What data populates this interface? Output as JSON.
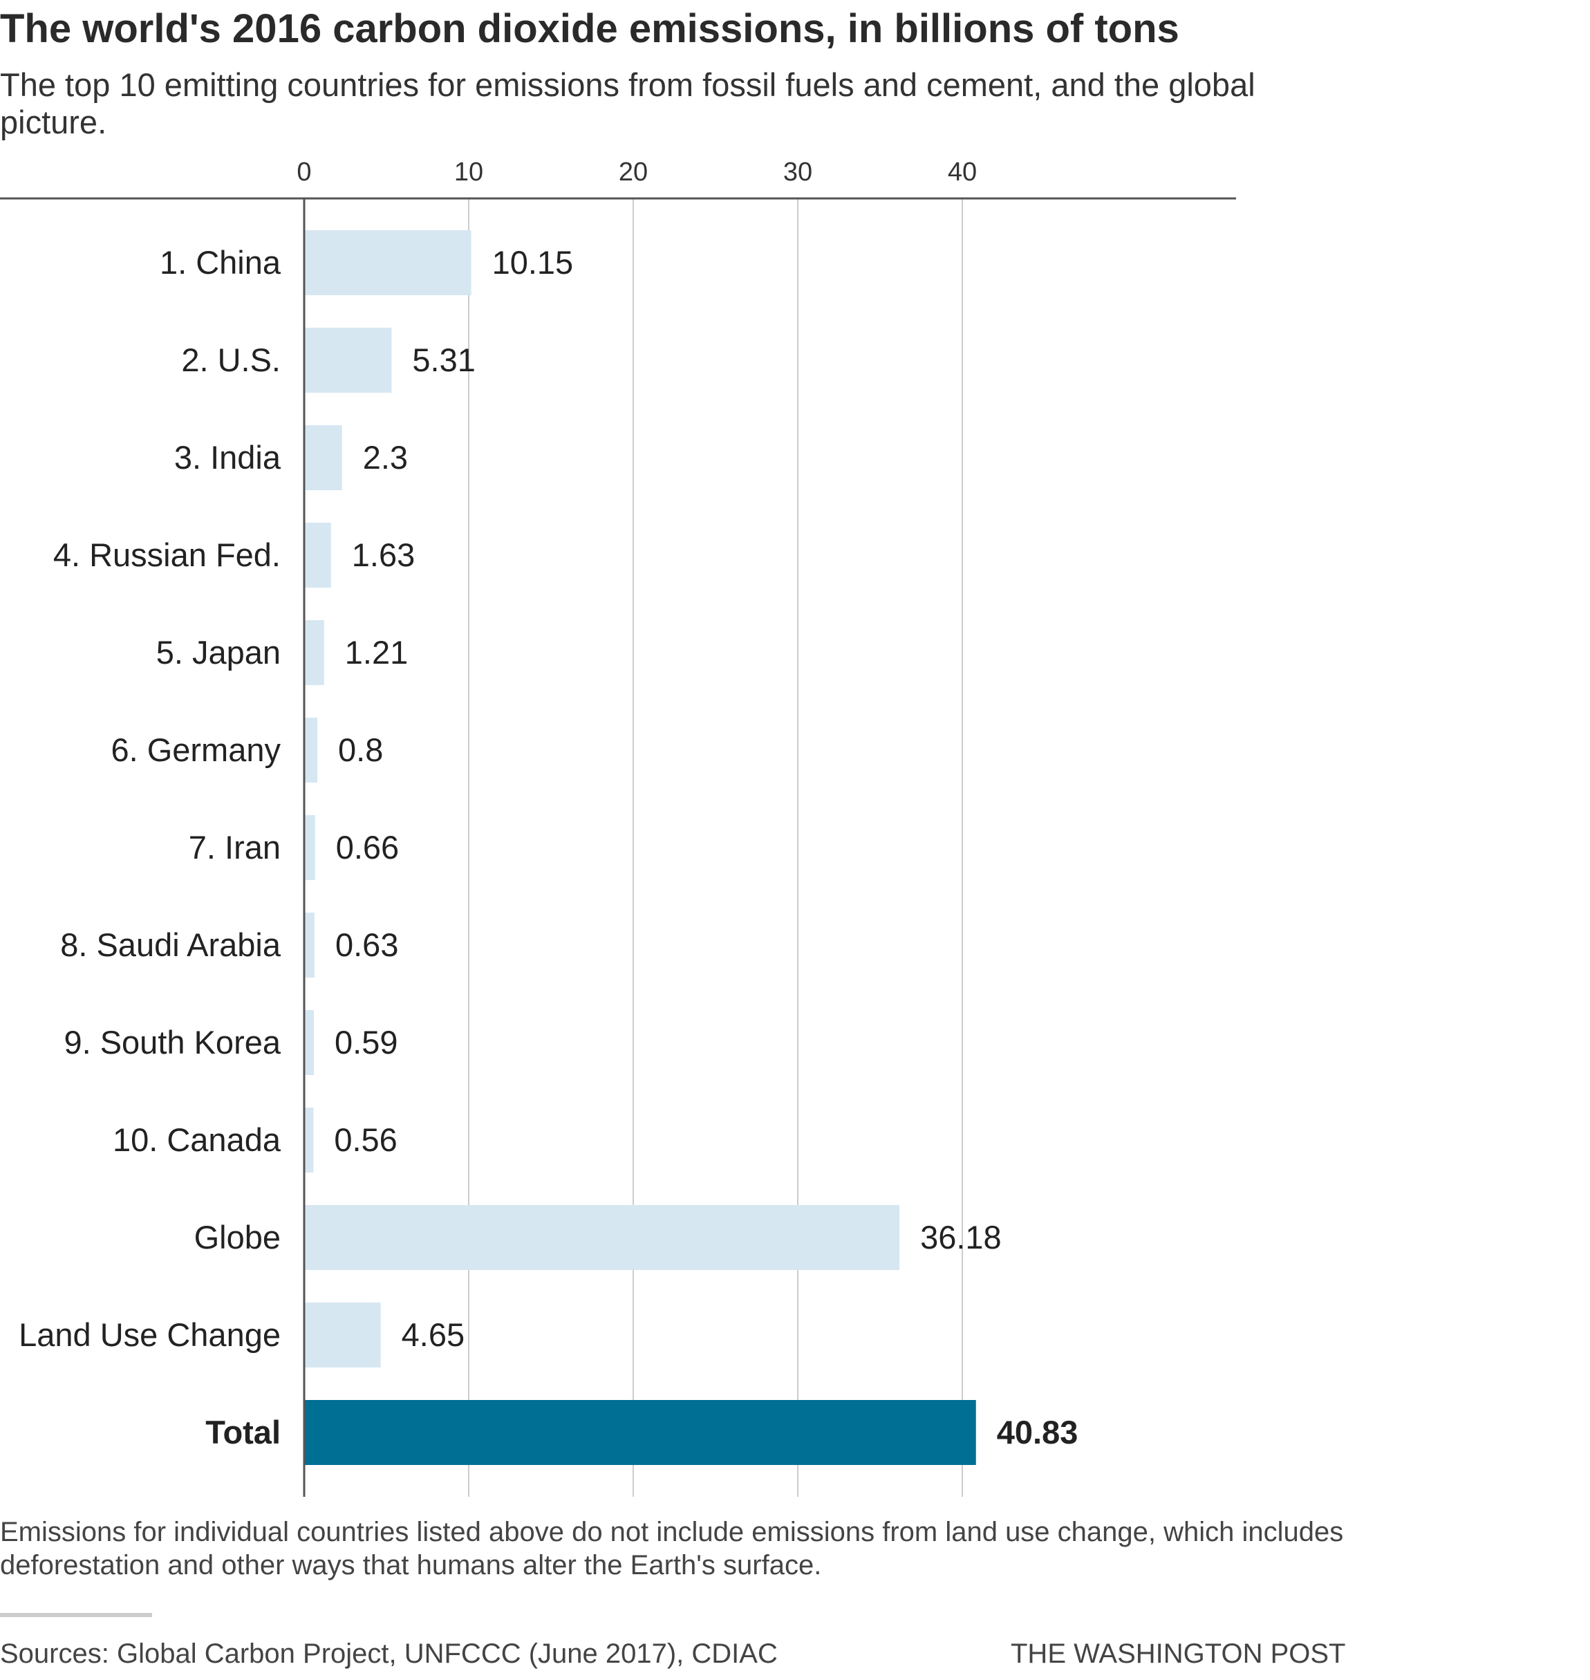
{
  "header": {
    "title": "The world's 2016 carbon dioxide emissions, in billions of tons",
    "subtitle": "The top 10 emitting countries for emissions from fossil fuels and cement, and the global picture."
  },
  "chart_data": {
    "type": "bar",
    "orientation": "horizontal",
    "xlim": [
      0,
      57.5
    ],
    "ticks": [
      0,
      10,
      20,
      30,
      40
    ],
    "tick_position": "top",
    "grid": true,
    "categories": [
      "1. China",
      "2. U.S.",
      "3. India",
      "4. Russian Fed.",
      "5. Japan",
      "6. Germany",
      "7. Iran",
      "8. Saudi Arabia",
      "9. South Korea",
      "10. Canada",
      "Globe",
      "Land Use Change",
      "Total"
    ],
    "values": [
      10.15,
      5.31,
      2.3,
      1.63,
      1.21,
      0.8,
      0.66,
      0.63,
      0.59,
      0.56,
      36.18,
      4.65,
      40.83
    ],
    "value_labels": [
      "10.15",
      "5.31",
      "2.3",
      "1.63",
      "1.21",
      "0.8",
      "0.66",
      "0.63",
      "0.59",
      "0.56",
      "36.18",
      "4.65",
      "40.83"
    ],
    "highlight_category": "Total",
    "colors": {
      "bar": "#d6e7f2",
      "highlight": "#006f94",
      "grid": "#cccccc",
      "axis": "#555555"
    }
  },
  "footer": {
    "note": "Emissions for individual countries listed above do not include emissions from land use change, which includes deforestation and other ways that humans alter the Earth's surface.",
    "sources": "Sources: Global Carbon Project, UNFCCC (June 2017), CDIAC",
    "credit": "THE WASHINGTON POST"
  }
}
